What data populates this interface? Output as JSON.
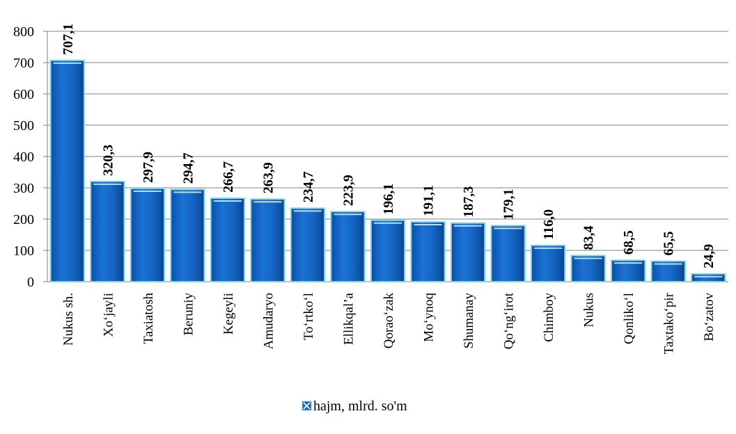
{
  "chart_data": {
    "type": "bar",
    "categories": [
      "Nukus sh.",
      "Xo‘jayli",
      "Taxiatosh",
      "Beruniy",
      "Kegeyli",
      "Amudaryo",
      "To‘rtko‘l",
      "Ellikqal’a",
      "Qorao‘zak",
      "Mo‘ynoq",
      "Shumanay",
      "Qo‘ng‘irot",
      "Chimboy",
      "Nukus",
      "Qonliko‘l",
      "Taxtako‘pir",
      "Bo‘zatov"
    ],
    "series": [
      {
        "name": "hajm, mlrd. so'm",
        "values": [
          707.1,
          320.3,
          297.9,
          294.7,
          266.7,
          263.9,
          234.7,
          223.9,
          196.1,
          191.1,
          187.3,
          179.1,
          116.0,
          83.4,
          68.5,
          65.5,
          24.9
        ],
        "labels": [
          "707,1",
          "320,3",
          "297,9",
          "294,7",
          "266,7",
          "263,9",
          "234,7",
          "223,9",
          "196,1",
          "191,1",
          "187,3",
          "179,1",
          "116,0",
          "83,4",
          "68,5",
          "65,5",
          "24,9"
        ]
      }
    ],
    "yticks": [
      "0",
      "100",
      "200",
      "300",
      "400",
      "500",
      "600",
      "700",
      "800"
    ],
    "ylim": [
      0,
      800
    ],
    "grid": true,
    "legend_position": "bottom",
    "colors": {
      "bar": "#1565c0",
      "bar_edge": "#7fd6f0",
      "grid": "#808080"
    }
  }
}
